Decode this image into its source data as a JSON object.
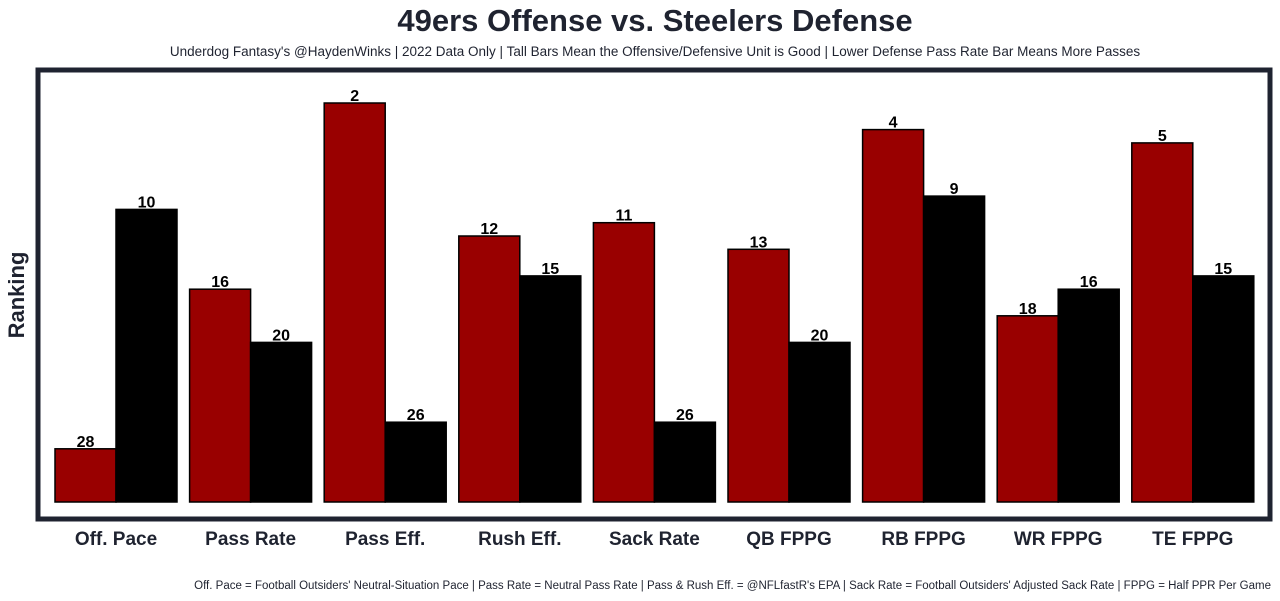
{
  "chart_data": {
    "type": "bar",
    "title": "49ers Offense vs. Steelers Defense",
    "subtitle": "Underdog Fantasy's @HaydenWinks | 2022 Data Only | Tall Bars Mean the Offensive/Defensive Unit is Good | Lower Defense Pass Rate Bar Means More Passes",
    "footnote": "Off. Pace = Football Outsiders' Neutral-Situation Pace | Pass Rate = Neutral Pass Rate | Pass & Rush Eff. = @NFLfastR's EPA | Sack Rate = Football Outsiders' Adjusted Sack Rate | FPPG = Half PPR Per Game",
    "xlabel": "",
    "ylabel": "Ranking",
    "y_axis": "rank (1 = best, taller bar); inverted scale",
    "categories": [
      "Off. Pace",
      "Pass Rate",
      "Pass Eff.",
      "Rush Eff.",
      "Sack Rate",
      "QB FPPG",
      "RB FPPG",
      "WR FPPG",
      "TE FPPG"
    ],
    "series": [
      {
        "name": "49ers Offense",
        "color": "#990000",
        "values": [
          28,
          16,
          2,
          12,
          11,
          13,
          4,
          18,
          5
        ]
      },
      {
        "name": "Steelers Defense",
        "color": "#000000",
        "values": [
          10,
          20,
          26,
          15,
          26,
          20,
          9,
          16,
          15
        ]
      }
    ],
    "legend": "none",
    "grid": false
  }
}
